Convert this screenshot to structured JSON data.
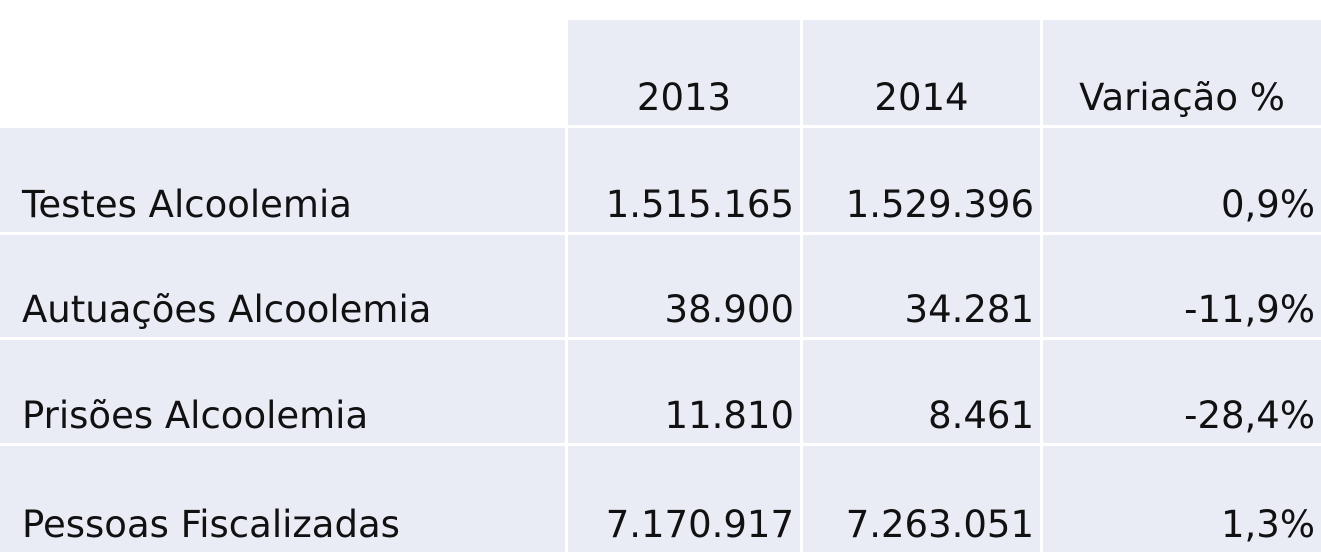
{
  "table": {
    "columns": [
      "",
      "2013",
      "2014",
      "Variação %"
    ],
    "rows": [
      [
        "Testes Alcoolemia",
        "1.515.165",
        "1.529.396",
        "0,9%"
      ],
      [
        "Autuações Alcoolemia",
        "38.900",
        "34.281",
        "-11,9%"
      ],
      [
        "Prisões Alcoolemia",
        "11.810",
        "8.461",
        "-28,4%"
      ],
      [
        "Pessoas Fiscalizadas",
        "7.170.917",
        "7.263.051",
        "1,3%"
      ]
    ]
  }
}
